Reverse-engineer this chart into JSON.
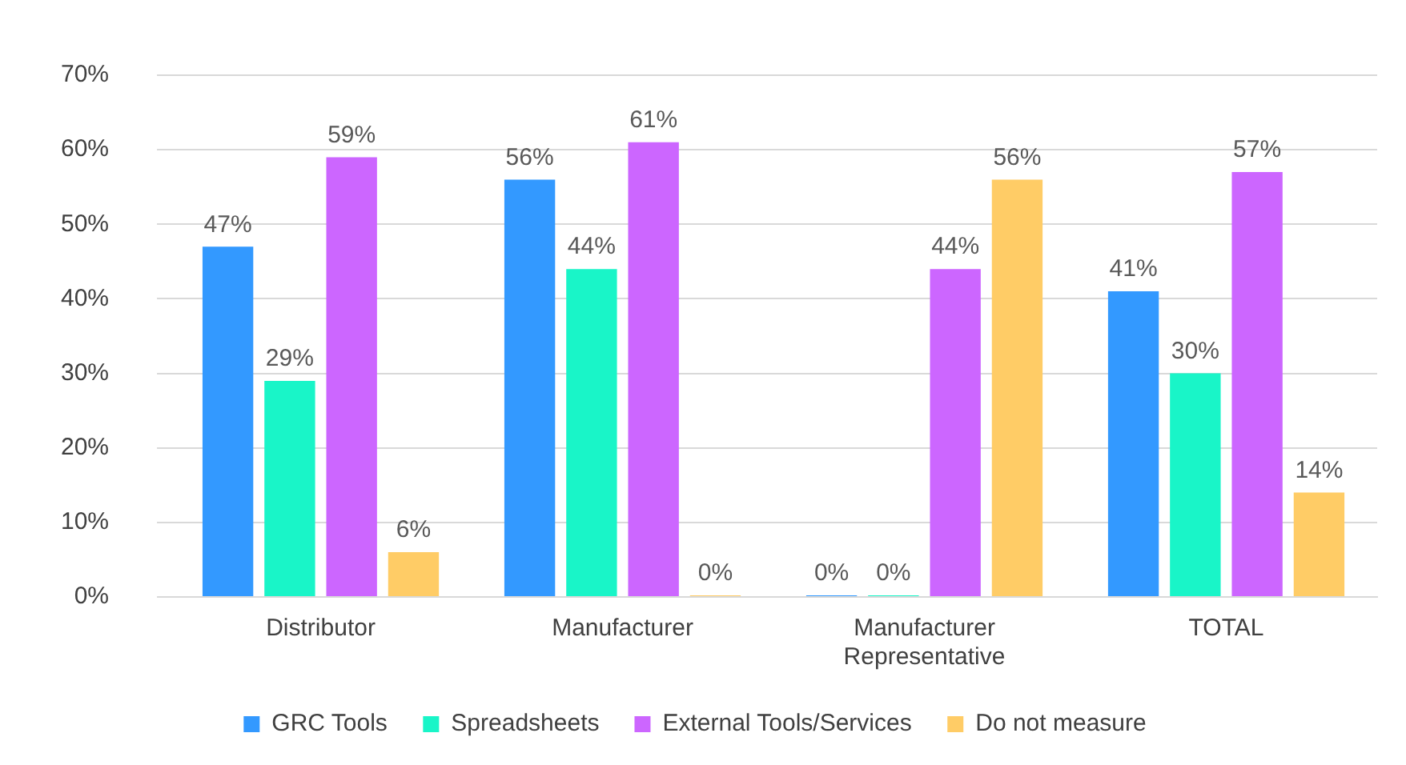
{
  "chart_data": {
    "type": "bar",
    "categories": [
      "Distributor",
      "Manufacturer",
      "Manufacturer Representative",
      "TOTAL"
    ],
    "series": [
      {
        "name": "GRC Tools",
        "color": "#3399ff",
        "values": [
          47,
          56,
          0,
          41
        ],
        "value_labels": [
          "47%",
          "56%",
          "0%",
          "41%"
        ]
      },
      {
        "name": "Spreadsheets",
        "color": "#19f5c8",
        "values": [
          29,
          44,
          0,
          30
        ],
        "value_labels": [
          "29%",
          "44%",
          "0%",
          "30%"
        ]
      },
      {
        "name": "External Tools/Services",
        "color": "#cc66ff",
        "values": [
          59,
          61,
          44,
          57
        ],
        "value_labels": [
          "59%",
          "61%",
          "44%",
          "57%"
        ]
      },
      {
        "name": "Do not measure",
        "color": "#ffcc66",
        "values": [
          6,
          0,
          56,
          14
        ],
        "value_labels": [
          "6%",
          "0%",
          "56%",
          "14%"
        ]
      }
    ],
    "ylim": [
      0,
      70
    ],
    "yticks": [
      {
        "value": 0,
        "label": "0%"
      },
      {
        "value": 10,
        "label": "10%"
      },
      {
        "value": 20,
        "label": "20%"
      },
      {
        "value": 30,
        "label": "30%"
      },
      {
        "value": 40,
        "label": "40%"
      },
      {
        "value": 50,
        "label": "50%"
      },
      {
        "value": 60,
        "label": "60%"
      },
      {
        "value": 70,
        "label": "70%"
      }
    ],
    "grid": "y",
    "legend": "bottom"
  }
}
